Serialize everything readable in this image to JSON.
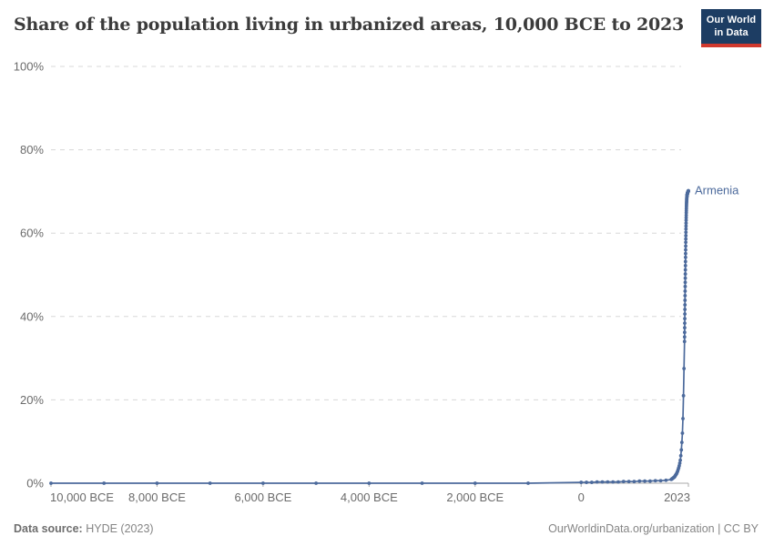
{
  "header": {
    "title": "Share of the population living in urbanized areas, 10,000 BCE to 2023",
    "logo_line1": "Our World",
    "logo_line2": "in Data"
  },
  "footer": {
    "source_label": "Data source:",
    "source_value": "HYDE (2023)",
    "attribution": "OurWorldinData.org/urbanization | CC BY"
  },
  "colors": {
    "line": "#4c6a9c",
    "entity_label": "#4c6a9c",
    "gridline": "#d8d8d8",
    "axis": "#a9a9a9",
    "tick_text": "#6b6b6b",
    "logo_bg": "#1d3d63",
    "logo_accent": "#d0392e",
    "title_text": "#3b3b3b"
  },
  "chart_data": {
    "type": "line",
    "title": "Share of the population living in urbanized areas, 10,000 BCE to 2023",
    "xlabel": "",
    "ylabel": "",
    "grid": "horizontal-dashed",
    "legend_position": "line-end-label",
    "xlim_years": [
      -10000,
      2023
    ],
    "ylim": [
      0,
      100
    ],
    "y_ticks": [
      {
        "value": 0,
        "label": "0%"
      },
      {
        "value": 20,
        "label": "20%"
      },
      {
        "value": 40,
        "label": "40%"
      },
      {
        "value": 60,
        "label": "60%"
      },
      {
        "value": 80,
        "label": "80%"
      },
      {
        "value": 100,
        "label": "100%"
      }
    ],
    "x_ticks": [
      {
        "year": -10000,
        "label": "10,000 BCE",
        "align": "start"
      },
      {
        "year": -8000,
        "label": "8,000 BCE",
        "align": "middle"
      },
      {
        "year": -6000,
        "label": "6,000 BCE",
        "align": "middle"
      },
      {
        "year": -4000,
        "label": "4,000 BCE",
        "align": "middle"
      },
      {
        "year": -2000,
        "label": "2,000 BCE",
        "align": "middle"
      },
      {
        "year": 0,
        "label": "0",
        "align": "middle"
      },
      {
        "year": 2023,
        "label": "2023",
        "align": "end"
      }
    ],
    "series": [
      {
        "name": "Armenia",
        "label": "Armenia",
        "points": [
          [
            -10000,
            0
          ],
          [
            -9000,
            0
          ],
          [
            -8000,
            0
          ],
          [
            -7000,
            0
          ],
          [
            -6000,
            0
          ],
          [
            -5000,
            0
          ],
          [
            -4000,
            0
          ],
          [
            -3000,
            0
          ],
          [
            -2000,
            0
          ],
          [
            -1000,
            0
          ],
          [
            0,
            0.2
          ],
          [
            100,
            0.2
          ],
          [
            200,
            0.2
          ],
          [
            300,
            0.3
          ],
          [
            400,
            0.3
          ],
          [
            500,
            0.3
          ],
          [
            600,
            0.3
          ],
          [
            700,
            0.3
          ],
          [
            800,
            0.4
          ],
          [
            900,
            0.4
          ],
          [
            1000,
            0.4
          ],
          [
            1100,
            0.5
          ],
          [
            1200,
            0.5
          ],
          [
            1300,
            0.5
          ],
          [
            1400,
            0.6
          ],
          [
            1500,
            0.6
          ],
          [
            1600,
            0.7
          ],
          [
            1700,
            0.9
          ],
          [
            1710,
            1.0
          ],
          [
            1720,
            1.1
          ],
          [
            1730,
            1.2
          ],
          [
            1740,
            1.3
          ],
          [
            1750,
            1.4
          ],
          [
            1760,
            1.5
          ],
          [
            1770,
            1.7
          ],
          [
            1780,
            1.9
          ],
          [
            1790,
            2.1
          ],
          [
            1800,
            2.3
          ],
          [
            1810,
            2.6
          ],
          [
            1820,
            2.9
          ],
          [
            1830,
            3.3
          ],
          [
            1840,
            3.7
          ],
          [
            1850,
            4.2
          ],
          [
            1860,
            4.8
          ],
          [
            1870,
            5.5
          ],
          [
            1880,
            6.6
          ],
          [
            1890,
            8.0
          ],
          [
            1900,
            9.8
          ],
          [
            1910,
            12.0
          ],
          [
            1920,
            15.5
          ],
          [
            1930,
            21.0
          ],
          [
            1940,
            27.5
          ],
          [
            1950,
            34.0
          ],
          [
            1951,
            35.1
          ],
          [
            1952,
            36.2
          ],
          [
            1953,
            37.3
          ],
          [
            1954,
            38.4
          ],
          [
            1955,
            39.5
          ],
          [
            1956,
            40.6
          ],
          [
            1957,
            41.7
          ],
          [
            1958,
            42.8
          ],
          [
            1959,
            43.9
          ],
          [
            1960,
            45.0
          ],
          [
            1961,
            46.1
          ],
          [
            1962,
            47.2
          ],
          [
            1963,
            48.2
          ],
          [
            1964,
            49.2
          ],
          [
            1965,
            50.2
          ],
          [
            1966,
            51.2
          ],
          [
            1967,
            52.2
          ],
          [
            1968,
            53.2
          ],
          [
            1969,
            54.2
          ],
          [
            1970,
            55.1
          ],
          [
            1971,
            56.0
          ],
          [
            1972,
            56.9
          ],
          [
            1973,
            57.8
          ],
          [
            1974,
            58.6
          ],
          [
            1975,
            59.4
          ],
          [
            1976,
            60.2
          ],
          [
            1977,
            61.0
          ],
          [
            1978,
            61.7
          ],
          [
            1979,
            62.4
          ],
          [
            1980,
            63.1
          ],
          [
            1981,
            63.7
          ],
          [
            1982,
            64.3
          ],
          [
            1983,
            64.9
          ],
          [
            1984,
            65.4
          ],
          [
            1985,
            65.9
          ],
          [
            1986,
            66.4
          ],
          [
            1987,
            66.8
          ],
          [
            1988,
            67.2
          ],
          [
            1989,
            67.5
          ],
          [
            1990,
            67.8
          ],
          [
            1991,
            68.1
          ],
          [
            1992,
            68.3
          ],
          [
            1993,
            68.5
          ],
          [
            1994,
            68.7
          ],
          [
            1995,
            68.8
          ],
          [
            1996,
            68.9
          ],
          [
            1997,
            69.0
          ],
          [
            1998,
            69.1
          ],
          [
            1999,
            69.2
          ],
          [
            2000,
            69.3
          ],
          [
            2001,
            69.3
          ],
          [
            2002,
            69.4
          ],
          [
            2003,
            69.4
          ],
          [
            2004,
            69.5
          ],
          [
            2005,
            69.5
          ],
          [
            2006,
            69.6
          ],
          [
            2007,
            69.6
          ],
          [
            2008,
            69.7
          ],
          [
            2009,
            69.7
          ],
          [
            2010,
            69.8
          ],
          [
            2011,
            69.8
          ],
          [
            2012,
            69.8
          ],
          [
            2013,
            69.9
          ],
          [
            2014,
            69.9
          ],
          [
            2015,
            69.9
          ],
          [
            2016,
            70.0
          ],
          [
            2017,
            70.0
          ],
          [
            2018,
            70.0
          ],
          [
            2019,
            70.0
          ],
          [
            2020,
            70.1
          ],
          [
            2021,
            70.1
          ],
          [
            2022,
            70.1
          ],
          [
            2023,
            70.2
          ]
        ]
      }
    ]
  }
}
